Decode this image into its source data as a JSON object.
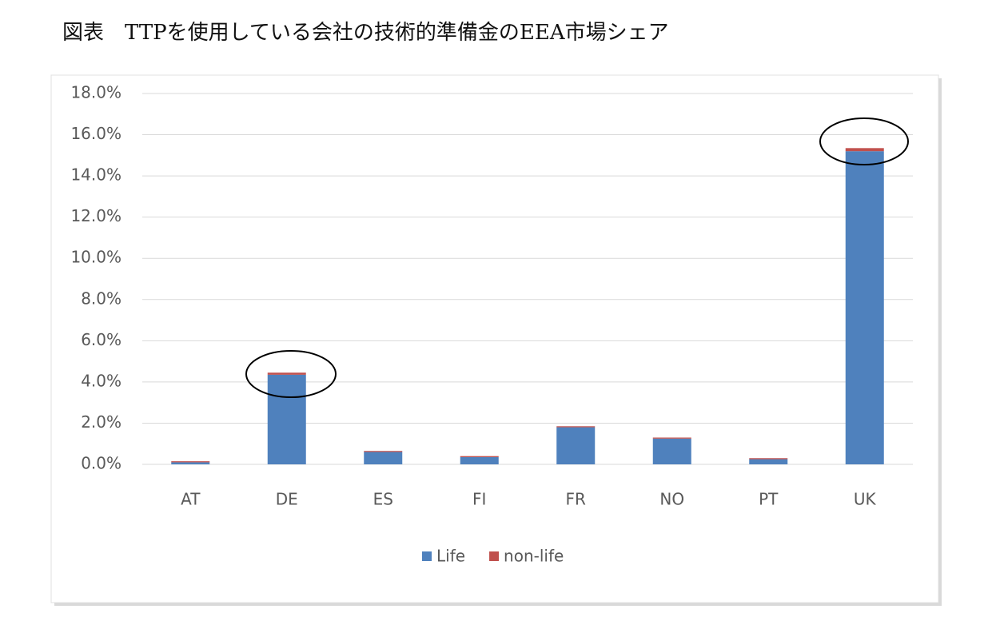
{
  "chart_data": {
    "type": "stacked_bar",
    "title": "図表　TTPを使用している会社の技術的準備金のEEA市場シェア",
    "categories": [
      "AT",
      "DE",
      "ES",
      "FI",
      "FR",
      "NO",
      "PT",
      "UK"
    ],
    "series": [
      {
        "name": "Life",
        "color": "#4f81bd",
        "values": [
          0.1,
          4.35,
          0.6,
          0.35,
          1.8,
          1.25,
          0.25,
          15.2
        ]
      },
      {
        "name": "non-life",
        "color": "#c0504d",
        "values": [
          0.05,
          0.1,
          0.05,
          0.05,
          0.05,
          0.05,
          0.05,
          0.15
        ]
      }
    ],
    "ylim": [
      0,
      18
    ],
    "yticks": [
      {
        "value": 0,
        "label": "0.0%"
      },
      {
        "value": 2,
        "label": "2.0%"
      },
      {
        "value": 4,
        "label": "4.0%"
      },
      {
        "value": 6,
        "label": "6.0%"
      },
      {
        "value": 8,
        "label": "8.0%"
      },
      {
        "value": 10,
        "label": "10.0%"
      },
      {
        "value": 12,
        "label": "12.0%"
      },
      {
        "value": 14,
        "label": "14.0%"
      },
      {
        "value": 16,
        "label": "16.0%"
      },
      {
        "value": 18,
        "label": "18.0%"
      }
    ],
    "grid": true,
    "legend": "bottom"
  }
}
